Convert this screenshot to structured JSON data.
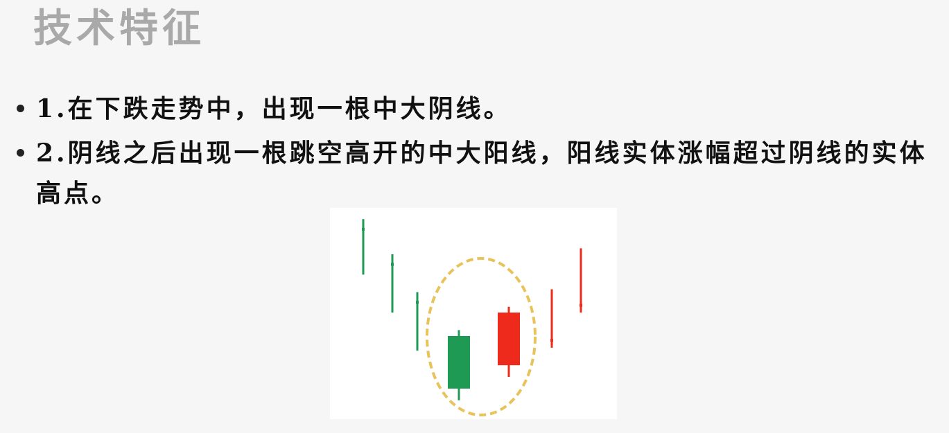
{
  "slide": {
    "title": "技术特征",
    "bullets": [
      "1.在下跌走势中，出现一根中大阴线。",
      "2.阴线之后出现一根跳空高开的中大阳线，阳线实体涨幅超过阴线的实体高点。"
    ]
  },
  "diagram": {
    "type": "candlestick-pattern",
    "colors": {
      "bearish": "#1f9a55",
      "bullish": "#ee2a1c",
      "highlight_circle": "#e7c35a",
      "background": "#ffffff"
    },
    "candles": [
      {
        "id": "c1",
        "direction": "down",
        "open": 9.0,
        "close": 8.9,
        "high": 9.3,
        "low": 7.4
      },
      {
        "id": "c2",
        "direction": "down",
        "open": 7.8,
        "close": 7.7,
        "high": 8.1,
        "low": 6.1
      },
      {
        "id": "c3",
        "direction": "down",
        "open": 6.5,
        "close": 6.4,
        "high": 6.8,
        "low": 4.8
      },
      {
        "id": "c4",
        "direction": "down",
        "open": 5.3,
        "close": 3.5,
        "high": 5.5,
        "low": 3.1
      },
      {
        "id": "c5",
        "direction": "up",
        "open": 4.3,
        "close": 6.1,
        "high": 6.3,
        "low": 3.9
      },
      {
        "id": "c6",
        "direction": "up",
        "open": 5.1,
        "close": 5.2,
        "high": 6.9,
        "low": 4.9
      },
      {
        "id": "c7",
        "direction": "up",
        "open": 6.3,
        "close": 6.4,
        "high": 8.3,
        "low": 6.1
      }
    ],
    "highlight": {
      "shape": "dashed-ellipse",
      "encloses": [
        "c4",
        "c5"
      ]
    }
  }
}
